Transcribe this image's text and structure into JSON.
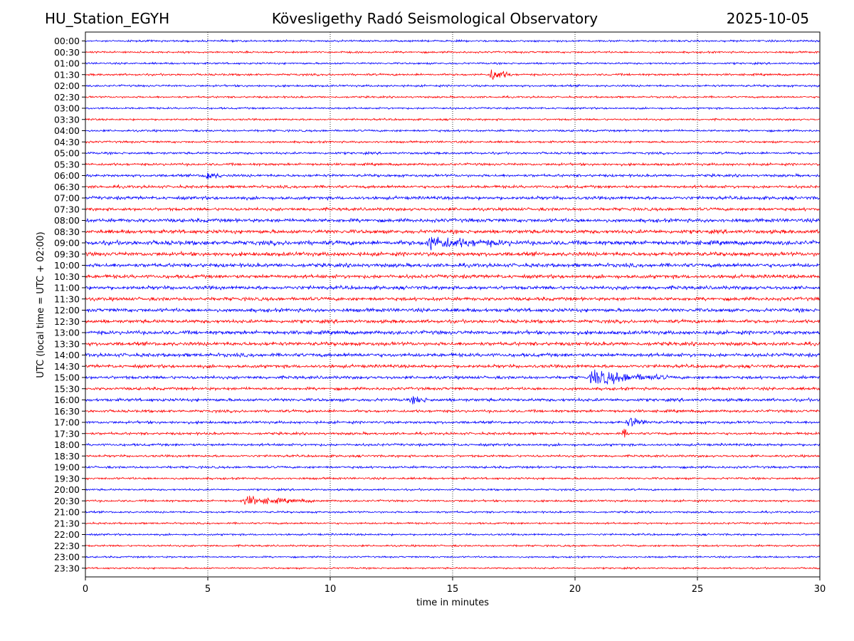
{
  "header": {
    "station": "HU_Station_EGYH",
    "observatory": "Kövesligethy Radó Seismological Observatory",
    "date": "2025-10-05"
  },
  "colors": {
    "even_trace": "#0000ff",
    "odd_trace": "#ff0000",
    "axis": "#000000",
    "grid": "#000000"
  },
  "chart_data": {
    "type": "line",
    "title": "Kövesligethy Radó Seismological Observatory",
    "xlabel": "time in minutes",
    "ylabel": "UTC (local time = UTC + 02:00)",
    "xlim": [
      0,
      30
    ],
    "xticks": [
      0,
      5,
      10,
      15,
      20,
      25,
      30
    ],
    "grid_x": [
      5,
      10,
      15,
      20,
      25
    ],
    "grid": "vertical dotted",
    "row_labels": [
      "00:00",
      "00:30",
      "01:00",
      "01:30",
      "02:00",
      "02:30",
      "03:00",
      "03:30",
      "04:00",
      "04:30",
      "05:00",
      "05:30",
      "06:00",
      "06:30",
      "07:00",
      "07:30",
      "08:00",
      "08:30",
      "09:00",
      "09:30",
      "10:00",
      "10:30",
      "11:00",
      "11:30",
      "12:00",
      "12:30",
      "13:00",
      "13:30",
      "14:00",
      "14:30",
      "15:00",
      "15:30",
      "16:00",
      "16:30",
      "17:00",
      "17:30",
      "18:00",
      "18:30",
      "19:00",
      "19:30",
      "20:00",
      "20:30",
      "21:00",
      "21:30",
      "22:00",
      "22:30",
      "23:00",
      "23:30"
    ],
    "row_noise_level": [
      1.0,
      1.0,
      1.0,
      1.1,
      1.1,
      1.0,
      1.0,
      1.0,
      1.1,
      1.1,
      1.2,
      1.3,
      1.4,
      1.5,
      1.7,
      1.6,
      1.9,
      2.0,
      2.3,
      2.1,
      2.0,
      1.9,
      1.9,
      1.8,
      1.9,
      1.8,
      2.0,
      1.9,
      1.9,
      1.7,
      1.6,
      1.5,
      1.6,
      1.4,
      1.4,
      1.3,
      1.3,
      1.2,
      1.2,
      1.1,
      1.0,
      1.1,
      1.0,
      1.0,
      1.0,
      1.0,
      0.9,
      0.9
    ],
    "events": [
      {
        "row": "01:30",
        "minute": 16.5,
        "duration_min": 0.9,
        "amplitude": 8
      },
      {
        "row": "06:00",
        "minute": 4.8,
        "duration_min": 0.8,
        "amplitude": 5
      },
      {
        "row": "09:00",
        "minute": 13.9,
        "duration_min": 3.5,
        "amplitude": 7
      },
      {
        "row": "15:00",
        "minute": 20.6,
        "duration_min": 3.2,
        "amplitude": 9
      },
      {
        "row": "16:00",
        "minute": 13.3,
        "duration_min": 0.8,
        "amplitude": 4
      },
      {
        "row": "17:00",
        "minute": 22.1,
        "duration_min": 1.1,
        "amplitude": 5
      },
      {
        "row": "17:30",
        "minute": 21.9,
        "duration_min": 0.3,
        "amplitude": 4
      },
      {
        "row": "20:30",
        "minute": 6.4,
        "duration_min": 3.0,
        "amplitude": 5
      }
    ]
  }
}
